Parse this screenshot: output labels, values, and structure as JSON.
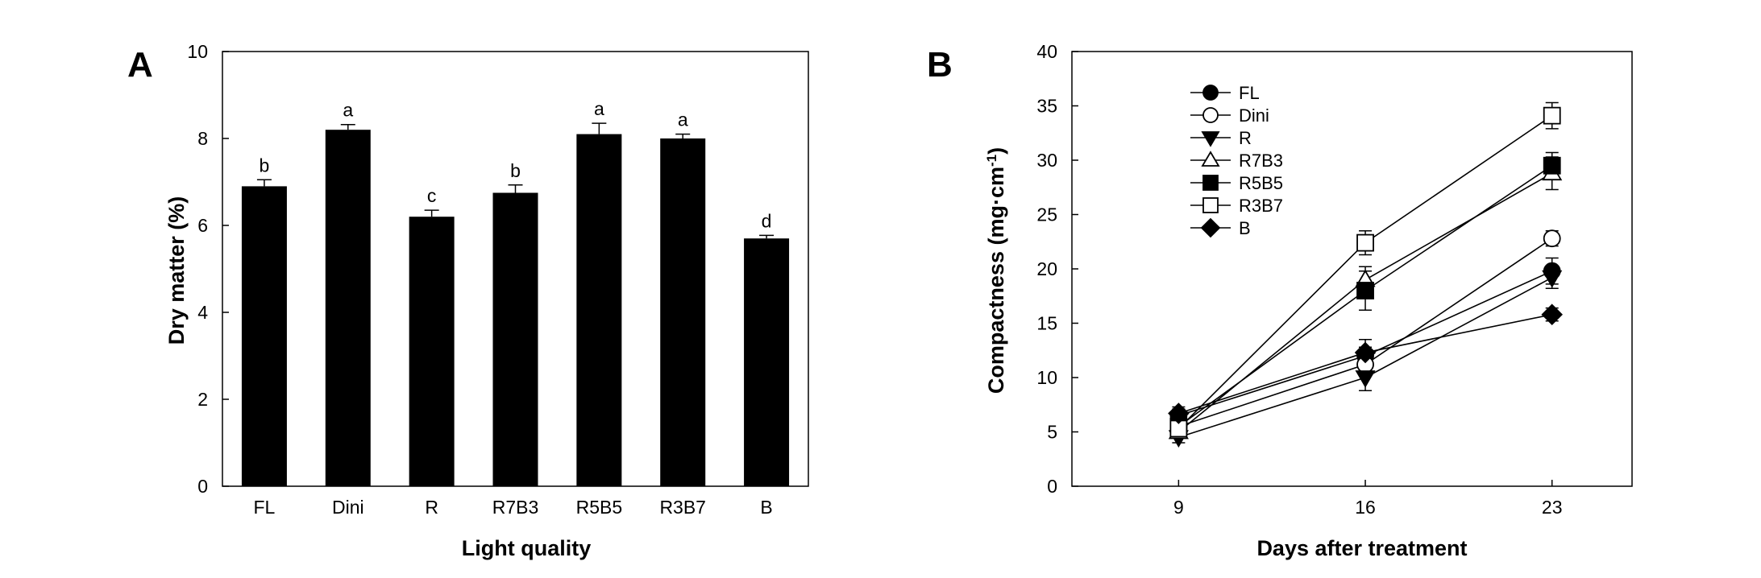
{
  "chart_data": [
    {
      "type": "bar",
      "panel_label": "A",
      "title": "",
      "xlabel": "Light quality",
      "ylabel": "Dry matter (%)",
      "categories": [
        "FL",
        "Dini",
        "R",
        "R7B3",
        "R5B5",
        "R3B7",
        "B"
      ],
      "values": [
        6.9,
        8.2,
        6.2,
        6.75,
        8.1,
        8.0,
        5.7
      ],
      "errors": [
        0.15,
        0.12,
        0.15,
        0.18,
        0.25,
        0.1,
        0.07
      ],
      "significance_letters": [
        "b",
        "a",
        "c",
        "b",
        "a",
        "a",
        "d"
      ],
      "ylim": [
        0,
        10
      ],
      "yticks": [
        0,
        2,
        4,
        6,
        8,
        10
      ],
      "bar_color": "#000000",
      "grid": false
    },
    {
      "type": "line",
      "panel_label": "B",
      "title": "",
      "xlabel": "Days after treatment",
      "ylabel": "Compactness (mg·cm⁻¹)",
      "x": [
        9,
        16,
        23
      ],
      "xticks": [
        9,
        16,
        23
      ],
      "xlim": [
        5,
        26
      ],
      "ylim": [
        0,
        40
      ],
      "yticks": [
        0,
        5,
        10,
        15,
        20,
        25,
        30,
        35,
        40
      ],
      "legend_position": "top-left",
      "grid": false,
      "series": [
        {
          "name": "FL",
          "marker": "circle-filled",
          "values": [
            6.5,
            12.0,
            19.8
          ],
          "errors": [
            0.6,
            0.8,
            1.2
          ]
        },
        {
          "name": "Dini",
          "marker": "circle-open",
          "values": [
            5.5,
            11.2,
            22.8
          ],
          "errors": [
            0.6,
            0.8,
            0.7
          ]
        },
        {
          "name": "R",
          "marker": "triangle-down-filled",
          "values": [
            4.5,
            10.0,
            19.2
          ],
          "errors": [
            0.5,
            1.2,
            1.0
          ]
        },
        {
          "name": "R7B3",
          "marker": "triangle-up-open",
          "values": [
            5.0,
            19.0,
            28.8
          ],
          "errors": [
            0.5,
            1.2,
            1.5
          ]
        },
        {
          "name": "R5B5",
          "marker": "square-filled",
          "values": [
            5.5,
            18.0,
            29.5
          ],
          "errors": [
            0.5,
            1.8,
            1.2
          ]
        },
        {
          "name": "R3B7",
          "marker": "square-open",
          "values": [
            5.3,
            22.4,
            34.1
          ],
          "errors": [
            0.6,
            1.1,
            1.2
          ]
        },
        {
          "name": "B",
          "marker": "diamond-filled",
          "values": [
            6.7,
            12.3,
            15.8
          ],
          "errors": [
            0.6,
            1.2,
            0.6
          ]
        }
      ]
    }
  ]
}
